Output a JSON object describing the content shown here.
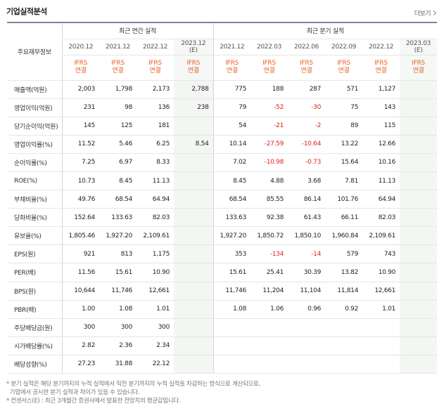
{
  "section_title": "기업실적분석",
  "more_label": "더보기",
  "header": {
    "row_label_title": "주요재무정보",
    "annual_group": "최근 연간 실적",
    "quarter_group": "최근 분기 실적",
    "annual_periods": [
      "2020.12",
      "2021.12",
      "2022.12",
      "2023.12"
    ],
    "annual_estimate_suffix": "(E)",
    "quarter_periods": [
      "2021.12",
      "2022.03",
      "2022.06",
      "2022.09",
      "2022.12",
      "2023.03"
    ],
    "quarter_estimate_suffix": "(E)",
    "ifrs_label": "IFRS",
    "consolidated_label": "연결"
  },
  "rows": [
    {
      "label": "매출액(억원)",
      "annual": [
        "2,003",
        "1,798",
        "2,173",
        "2,788"
      ],
      "quarter": [
        "775",
        "188",
        "287",
        "571",
        "1,127",
        ""
      ]
    },
    {
      "label": "영업이익(억원)",
      "annual": [
        "231",
        "98",
        "136",
        "238"
      ],
      "quarter": [
        "79",
        "-52",
        "-30",
        "75",
        "143",
        ""
      ]
    },
    {
      "label": "당기순이익(억원)",
      "annual": [
        "145",
        "125",
        "181",
        ""
      ],
      "quarter": [
        "54",
        "-21",
        "-2",
        "89",
        "115",
        ""
      ]
    },
    {
      "label": "영업이익률(%)",
      "annual": [
        "11.52",
        "5.46",
        "6.25",
        "8.54"
      ],
      "quarter": [
        "10.14",
        "-27.59",
        "-10.64",
        "13.22",
        "12.66",
        ""
      ]
    },
    {
      "label": "순이익률(%)",
      "annual": [
        "7.25",
        "6.97",
        "8.33",
        ""
      ],
      "quarter": [
        "7.02",
        "-10.98",
        "-0.73",
        "15.64",
        "10.16",
        ""
      ]
    },
    {
      "label": "ROE(%)",
      "annual": [
        "10.73",
        "8.45",
        "11.13",
        ""
      ],
      "quarter": [
        "8.45",
        "4.88",
        "3.68",
        "7.81",
        "11.13",
        ""
      ]
    },
    {
      "label": "부채비율(%)",
      "annual": [
        "49.76",
        "68.54",
        "64.94",
        ""
      ],
      "quarter": [
        "68.54",
        "85.55",
        "86.14",
        "101.76",
        "64.94",
        ""
      ]
    },
    {
      "label": "당좌비율(%)",
      "annual": [
        "152.64",
        "133.63",
        "82.03",
        ""
      ],
      "quarter": [
        "133.63",
        "92.38",
        "61.43",
        "66.11",
        "82.03",
        ""
      ]
    },
    {
      "label": "유보율(%)",
      "annual": [
        "1,805.46",
        "1,927.20",
        "2,109.61",
        ""
      ],
      "quarter": [
        "1,927.20",
        "1,850.72",
        "1,850.10",
        "1,960.84",
        "2,109.61",
        ""
      ]
    },
    {
      "label": "EPS(원)",
      "annual": [
        "921",
        "813",
        "1,175",
        ""
      ],
      "quarter": [
        "353",
        "-134",
        "-14",
        "579",
        "743",
        ""
      ]
    },
    {
      "label": "PER(배)",
      "annual": [
        "11.56",
        "15.61",
        "10.90",
        ""
      ],
      "quarter": [
        "15.61",
        "25.41",
        "30.39",
        "13.82",
        "10.90",
        ""
      ]
    },
    {
      "label": "BPS(원)",
      "annual": [
        "10,644",
        "11,746",
        "12,661",
        ""
      ],
      "quarter": [
        "11,746",
        "11,204",
        "11,104",
        "11,814",
        "12,661",
        ""
      ]
    },
    {
      "label": "PBR(배)",
      "annual": [
        "1.00",
        "1.08",
        "1.01",
        ""
      ],
      "quarter": [
        "1.08",
        "1.06",
        "0.96",
        "0.92",
        "1.01",
        ""
      ]
    },
    {
      "label": "주당배당금(원)",
      "annual": [
        "300",
        "300",
        "300",
        ""
      ],
      "quarter": [
        "",
        "",
        "",
        "",
        "",
        ""
      ]
    },
    {
      "label": "시가배당률(%)",
      "annual": [
        "2.82",
        "2.36",
        "2.34",
        ""
      ],
      "quarter": [
        "",
        "",
        "",
        "",
        "",
        ""
      ]
    },
    {
      "label": "배당성향(%)",
      "annual": [
        "27.23",
        "31.88",
        "22.12",
        ""
      ],
      "quarter": [
        "",
        "",
        "",
        "",
        "",
        ""
      ]
    }
  ],
  "notes": [
    "* 분기 실적은 해당 분기까지의 누적 실적에서 직전 분기까지의 누적 실적을 차감하는 방식으로 계산되므로,",
    "  기업에서 공시한 분기 실적과 차이가 있을 수 있습니다.",
    "* 컨센서스(E) : 최근 3개월간 증권사에서 발표한 전망치의 평균값입니다."
  ],
  "colors": {
    "ifrs": "#e8612c",
    "negative": "#e02020",
    "estimate_bg": "#f3f6f3"
  }
}
